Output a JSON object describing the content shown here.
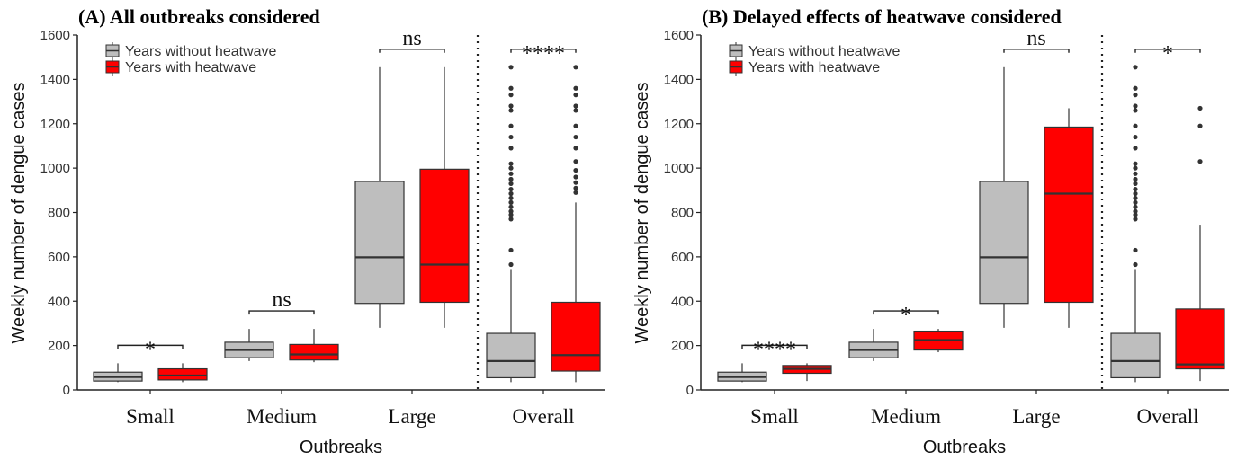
{
  "chart_data": [
    {
      "type": "boxplot",
      "title": "(A) All outbreaks considered",
      "xlabel": "Outbreaks",
      "ylabel": "Weekly number of dengue cases",
      "ylim": [
        0,
        1600
      ],
      "yticks": [
        0,
        200,
        400,
        600,
        800,
        1000,
        1200,
        1400,
        1600
      ],
      "categories": [
        "Small",
        "Medium",
        "Large",
        "Overall"
      ],
      "legend": {
        "position": "top-left",
        "entries": [
          "Years without heatwave",
          "Years with heatwave"
        ]
      },
      "series": [
        {
          "name": "Years without heatwave",
          "color": "#bebebe",
          "boxes": [
            {
              "whisker_low": 35,
              "q1": 40,
              "median": 58,
              "q3": 80,
              "whisker_high": 120,
              "outliers": []
            },
            {
              "whisker_low": 130,
              "q1": 145,
              "median": 180,
              "q3": 215,
              "whisker_high": 275,
              "outliers": []
            },
            {
              "whisker_low": 280,
              "q1": 390,
              "median": 598,
              "q3": 940,
              "whisker_high": 1455,
              "outliers": []
            },
            {
              "whisker_low": 35,
              "q1": 55,
              "median": 130,
              "q3": 255,
              "whisker_high": 545,
              "outliers": [
                565,
                630,
                770,
                790,
                805,
                825,
                845,
                865,
                885,
                905,
                930,
                950,
                975,
                1000,
                1020,
                1090,
                1140,
                1190,
                1260,
                1280,
                1330,
                1360,
                1455
              ]
            }
          ]
        },
        {
          "name": "Years with heatwave",
          "color": "#ff0000",
          "boxes": [
            {
              "whisker_low": 35,
              "q1": 45,
              "median": 65,
              "q3": 95,
              "whisker_high": 120,
              "outliers": []
            },
            {
              "whisker_low": 125,
              "q1": 135,
              "median": 160,
              "q3": 205,
              "whisker_high": 275,
              "outliers": []
            },
            {
              "whisker_low": 280,
              "q1": 395,
              "median": 565,
              "q3": 995,
              "whisker_high": 1455,
              "outliers": []
            },
            {
              "whisker_low": 35,
              "q1": 85,
              "median": 157,
              "q3": 395,
              "whisker_high": 845,
              "outliers": [
                890,
                910,
                935,
                960,
                990,
                1030,
                1090,
                1140,
                1190,
                1260,
                1280,
                1330,
                1360,
                1455
              ]
            }
          ]
        }
      ],
      "significance": [
        "*",
        "ns",
        "ns",
        "****"
      ],
      "separator_before": "Overall"
    },
    {
      "type": "boxplot",
      "title": "(B) Delayed effects of heatwave considered",
      "xlabel": "Outbreaks",
      "ylabel": "Weekly number of dengue cases",
      "ylim": [
        0,
        1600
      ],
      "yticks": [
        0,
        200,
        400,
        600,
        800,
        1000,
        1200,
        1400,
        1600
      ],
      "categories": [
        "Small",
        "Medium",
        "Large",
        "Overall"
      ],
      "legend": {
        "position": "top-left",
        "entries": [
          "Years without heatwave",
          "Years with heatwave"
        ]
      },
      "series": [
        {
          "name": "Years without heatwave",
          "color": "#bebebe",
          "boxes": [
            {
              "whisker_low": 35,
              "q1": 40,
              "median": 58,
              "q3": 80,
              "whisker_high": 120,
              "outliers": []
            },
            {
              "whisker_low": 130,
              "q1": 145,
              "median": 180,
              "q3": 215,
              "whisker_high": 275,
              "outliers": []
            },
            {
              "whisker_low": 280,
              "q1": 390,
              "median": 598,
              "q3": 940,
              "whisker_high": 1455,
              "outliers": []
            },
            {
              "whisker_low": 35,
              "q1": 55,
              "median": 130,
              "q3": 255,
              "whisker_high": 545,
              "outliers": [
                565,
                630,
                770,
                790,
                805,
                825,
                845,
                865,
                885,
                905,
                930,
                950,
                975,
                1000,
                1020,
                1090,
                1140,
                1190,
                1260,
                1280,
                1330,
                1360,
                1455
              ]
            }
          ]
        },
        {
          "name": "Years with heatwave",
          "color": "#ff0000",
          "boxes": [
            {
              "whisker_low": 40,
              "q1": 75,
              "median": 95,
              "q3": 110,
              "whisker_high": 120,
              "outliers": []
            },
            {
              "whisker_low": 170,
              "q1": 180,
              "median": 225,
              "q3": 265,
              "whisker_high": 275,
              "outliers": []
            },
            {
              "whisker_low": 280,
              "q1": 395,
              "median": 885,
              "q3": 1185,
              "whisker_high": 1270,
              "outliers": []
            },
            {
              "whisker_low": 40,
              "q1": 95,
              "median": 115,
              "q3": 365,
              "whisker_high": 745,
              "outliers": [
                1030,
                1190,
                1270
              ]
            }
          ]
        }
      ],
      "significance": [
        "****",
        "*",
        "ns",
        "*"
      ],
      "separator_before": "Overall"
    }
  ]
}
